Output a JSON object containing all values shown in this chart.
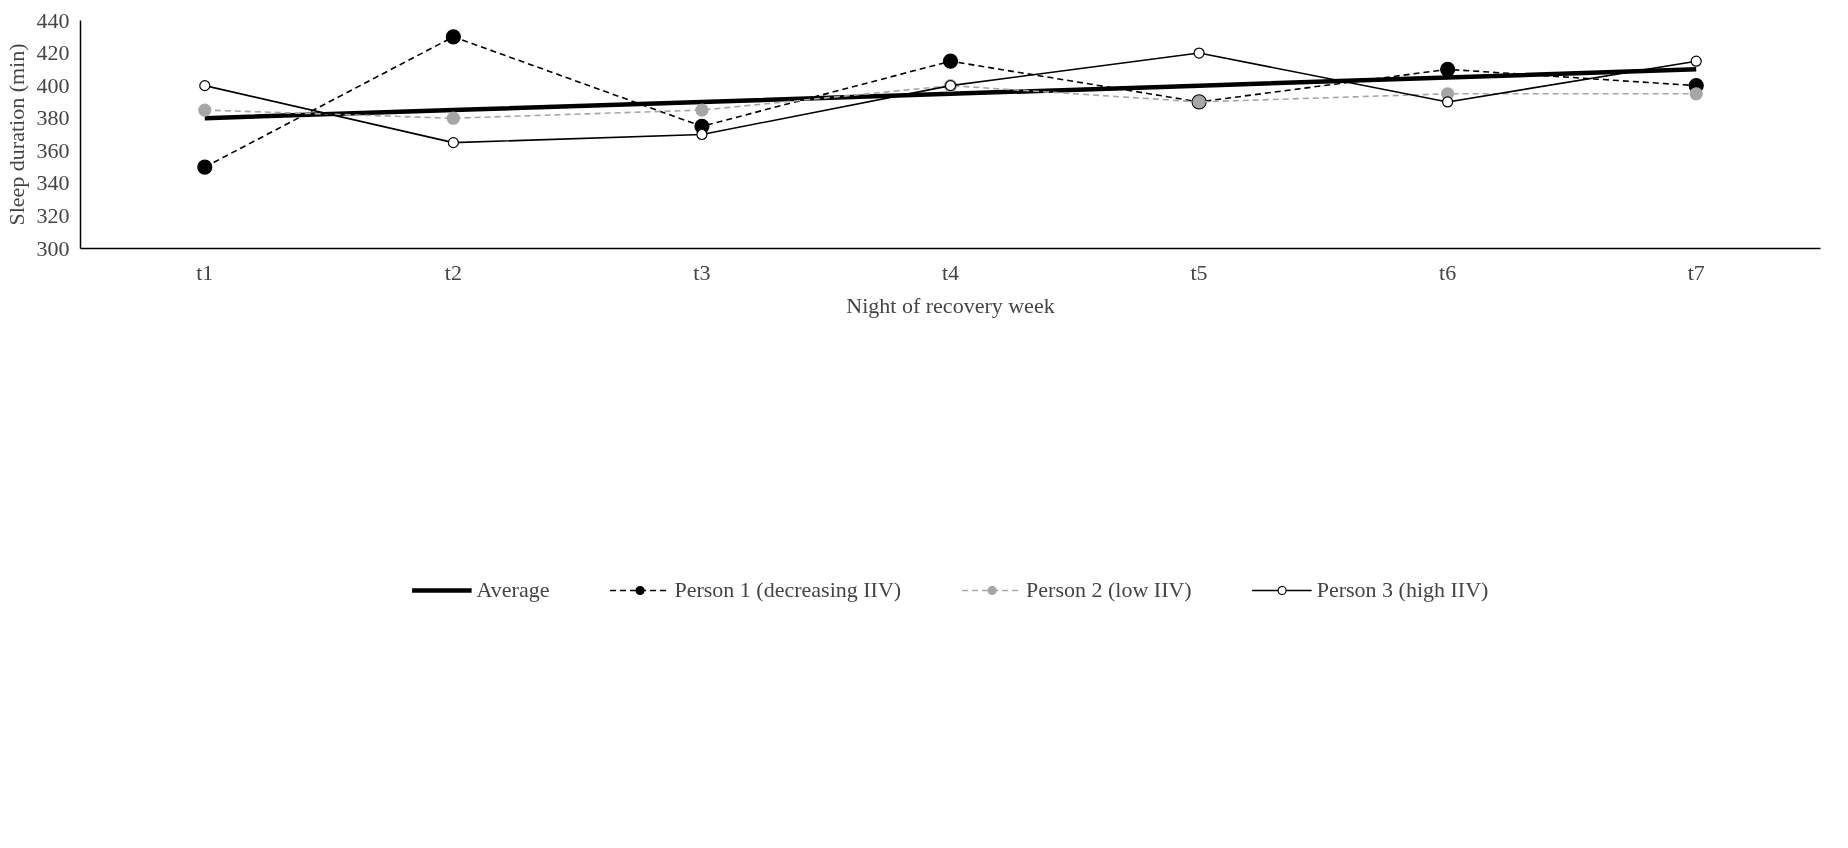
{
  "chart_data": {
    "type": "line",
    "xlabel": "Night of recovery week",
    "ylabel": "Sleep duration (min)",
    "categories": [
      "t1",
      "t2",
      "t3",
      "t4",
      "t5",
      "t6",
      "t7"
    ],
    "ylim": [
      300,
      440
    ],
    "yticks": [
      300,
      320,
      340,
      360,
      380,
      400,
      420,
      440
    ],
    "grid": false,
    "legend": "bottom",
    "series": [
      {
        "name": "Average",
        "color": "#000000",
        "values": [
          380,
          385,
          390,
          395,
          400,
          405,
          410
        ],
        "marker": "none",
        "line_style": "solid"
      },
      {
        "name": "Person 1 (decreasing IIV)",
        "color": "#000000",
        "values": [
          350,
          430,
          375,
          415,
          390,
          410,
          400
        ],
        "marker": "circle",
        "line_style": "dashed"
      },
      {
        "name": "Person 2 (low IIV)",
        "color": "#a6a6a6",
        "values": [
          385,
          380,
          385,
          400,
          390,
          395,
          395
        ],
        "marker": "circle",
        "line_style": "dashed"
      },
      {
        "name": "Person 3 (high IIV)",
        "color": "#000000",
        "values": [
          400,
          365,
          370,
          400,
          420,
          390,
          415
        ],
        "marker": "circle",
        "line_style": "solid"
      }
    ]
  }
}
